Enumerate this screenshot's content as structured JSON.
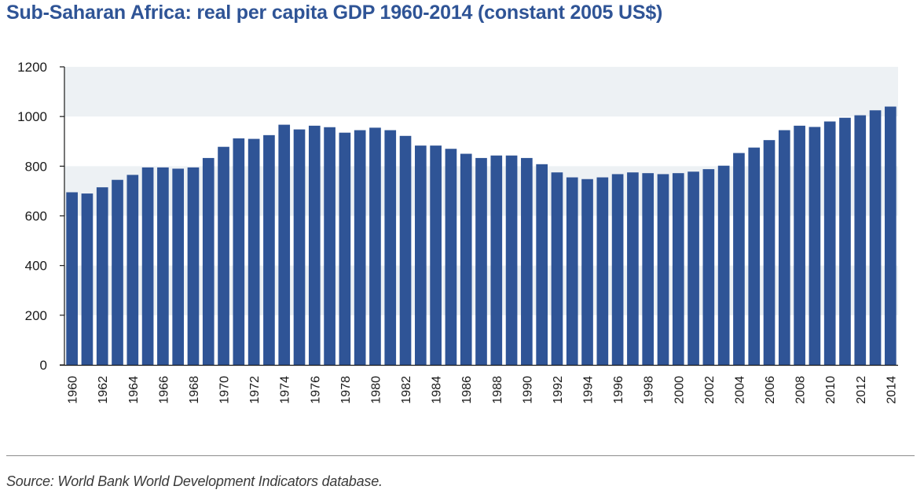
{
  "title": "Sub-Saharan Africa: real per capita GDP 1960-2014 (constant 2005 US$)",
  "source": "Source: World Bank World Development Indicators database.",
  "colors": {
    "title": "#2f5496",
    "bar": "#2f5496",
    "band": "#edf1f4",
    "axis": "#1a1a1a"
  },
  "chart_data": {
    "type": "bar",
    "title": "Sub-Saharan Africa: real per capita GDP 1960-2014 (constant 2005 US$)",
    "xlabel": "",
    "ylabel": "",
    "ylim": [
      0,
      1200
    ],
    "yticks": [
      0,
      200,
      400,
      600,
      800,
      1000,
      1200
    ],
    "grid": "alternating horizontal bands",
    "legend": "none",
    "categories": [
      "1960",
      "1961",
      "1962",
      "1963",
      "1964",
      "1965",
      "1966",
      "1967",
      "1968",
      "1969",
      "1970",
      "1971",
      "1972",
      "1973",
      "1974",
      "1975",
      "1976",
      "1977",
      "1978",
      "1979",
      "1980",
      "1981",
      "1982",
      "1983",
      "1984",
      "1985",
      "1986",
      "1987",
      "1988",
      "1989",
      "1990",
      "1991",
      "1992",
      "1993",
      "1994",
      "1995",
      "1996",
      "1997",
      "1998",
      "1999",
      "2000",
      "2001",
      "2002",
      "2003",
      "2004",
      "2005",
      "2006",
      "2007",
      "2008",
      "2009",
      "2010",
      "2011",
      "2012",
      "2013",
      "2014"
    ],
    "x_tick_labels": [
      "1960",
      "1962",
      "1964",
      "1966",
      "1968",
      "1970",
      "1972",
      "1974",
      "1976",
      "1978",
      "1980",
      "1982",
      "1984",
      "1986",
      "1988",
      "1990",
      "1992",
      "1994",
      "1996",
      "1998",
      "2000",
      "2002",
      "2004",
      "2006",
      "2008",
      "2010",
      "2012",
      "2014"
    ],
    "values": [
      695,
      690,
      715,
      745,
      765,
      795,
      795,
      790,
      795,
      833,
      878,
      912,
      910,
      925,
      967,
      948,
      963,
      957,
      935,
      945,
      955,
      945,
      922,
      883,
      883,
      870,
      850,
      833,
      843,
      843,
      833,
      808,
      775,
      755,
      748,
      755,
      768,
      775,
      772,
      768,
      772,
      778,
      788,
      802,
      853,
      875,
      905,
      945,
      963,
      958,
      980,
      995,
      1005,
      1025,
      1040
    ]
  }
}
